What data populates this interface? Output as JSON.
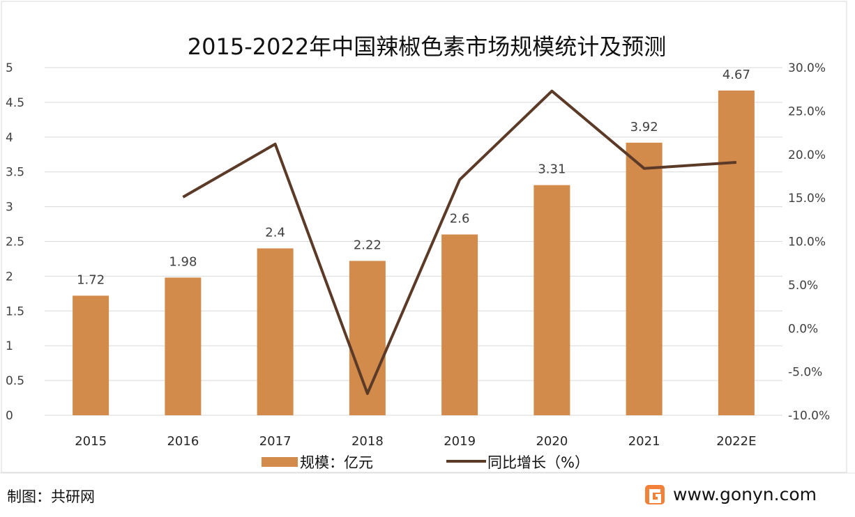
{
  "chart_data": {
    "type": "bar+line",
    "title": "2015-2022年中国辣椒色素市场规模统计及预测",
    "categories": [
      "2015",
      "2016",
      "2017",
      "2018",
      "2019",
      "2020",
      "2021",
      "2022E"
    ],
    "series": [
      {
        "name": "规模：亿元",
        "type": "bar",
        "axis": "left",
        "color": "#D28B4B",
        "values": [
          1.72,
          1.98,
          2.4,
          2.22,
          2.6,
          3.31,
          3.92,
          4.67
        ],
        "labels": [
          "1.72",
          "1.98",
          "2.4",
          "2.22",
          "2.6",
          "3.31",
          "3.92",
          "4.67"
        ]
      },
      {
        "name": "同比增长（%）",
        "type": "line",
        "axis": "right",
        "color": "#5C3A28",
        "values": [
          null,
          15.1,
          21.2,
          -7.5,
          17.1,
          27.3,
          18.4,
          19.1
        ]
      }
    ],
    "left_axis": {
      "ylim": [
        0,
        5
      ],
      "ticks": [
        "0",
        "0.5",
        "1",
        "1.5",
        "2",
        "2.5",
        "3",
        "3.5",
        "4",
        "4.5",
        "5"
      ]
    },
    "right_axis": {
      "ylim": [
        -10,
        30
      ],
      "ticks": [
        "-10.0%",
        "-5.0%",
        "0.0%",
        "5.0%",
        "10.0%",
        "15.0%",
        "20.0%",
        "25.0%",
        "30.0%"
      ]
    },
    "grid": true,
    "legend": "bottom"
  },
  "footer": {
    "source": "制图：共研网",
    "website": "www.gonyn.com"
  }
}
